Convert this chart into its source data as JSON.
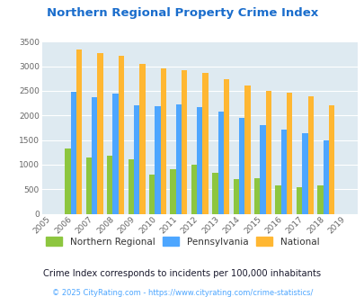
{
  "title": "Northern Regional Property Crime Index",
  "years": [
    2005,
    2006,
    2007,
    2008,
    2009,
    2010,
    2011,
    2012,
    2013,
    2014,
    2015,
    2016,
    2017,
    2018,
    2019
  ],
  "northern_regional": [
    null,
    1330,
    1150,
    1190,
    1100,
    800,
    910,
    990,
    840,
    700,
    720,
    570,
    550,
    570,
    null
  ],
  "pennsylvania": [
    null,
    2480,
    2370,
    2440,
    2200,
    2180,
    2230,
    2160,
    2070,
    1950,
    1800,
    1720,
    1640,
    1490,
    null
  ],
  "national": [
    null,
    3340,
    3260,
    3210,
    3040,
    2960,
    2910,
    2860,
    2730,
    2600,
    2500,
    2470,
    2380,
    2200,
    null
  ],
  "color_northern": "#8dc63f",
  "color_pennsylvania": "#4da6ff",
  "color_national": "#ffb732",
  "ylim": [
    0,
    3500
  ],
  "yticks": [
    0,
    500,
    1000,
    1500,
    2000,
    2500,
    3000,
    3500
  ],
  "bg_color": "#deeaf1",
  "subtitle": "Crime Index corresponds to incidents per 100,000 inhabitants",
  "footer": "© 2025 CityRating.com - https://www.cityrating.com/crime-statistics/",
  "title_color": "#1a6dcc",
  "subtitle_color": "#1a1a2e",
  "footer_color": "#4da6ff",
  "bar_width": 0.27
}
